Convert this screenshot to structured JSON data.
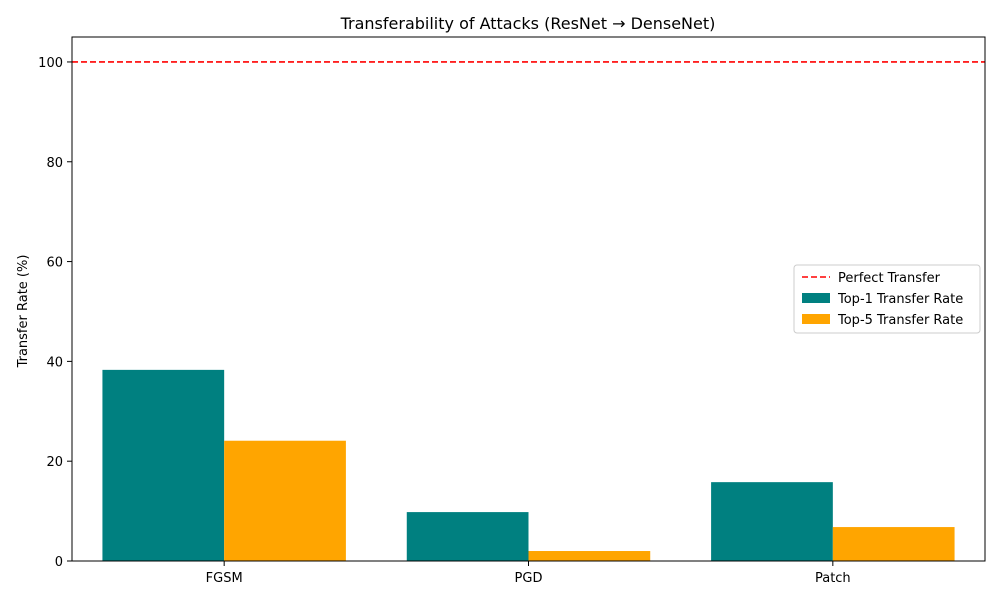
{
  "chart_data": {
    "type": "bar",
    "title": "Transferability of Attacks (ResNet → DenseNet)",
    "xlabel": "",
    "ylabel": "Transfer Rate (%)",
    "categories": [
      "FGSM",
      "PGD",
      "Patch"
    ],
    "series": [
      {
        "name": "Top-1 Transfer Rate",
        "values": [
          38.3,
          9.8,
          15.8
        ],
        "color": "#008080"
      },
      {
        "name": "Top-5 Transfer Rate",
        "values": [
          24.1,
          2.0,
          6.8
        ],
        "color": "#FFA500"
      }
    ],
    "reference_line": {
      "name": "Perfect Transfer",
      "value": 100,
      "color": "#FF0000",
      "style": "dashed"
    },
    "ylim": [
      0,
      105
    ],
    "yticks": [
      0,
      20,
      40,
      60,
      80,
      100
    ],
    "grid": false,
    "legend_position": "center-right"
  }
}
